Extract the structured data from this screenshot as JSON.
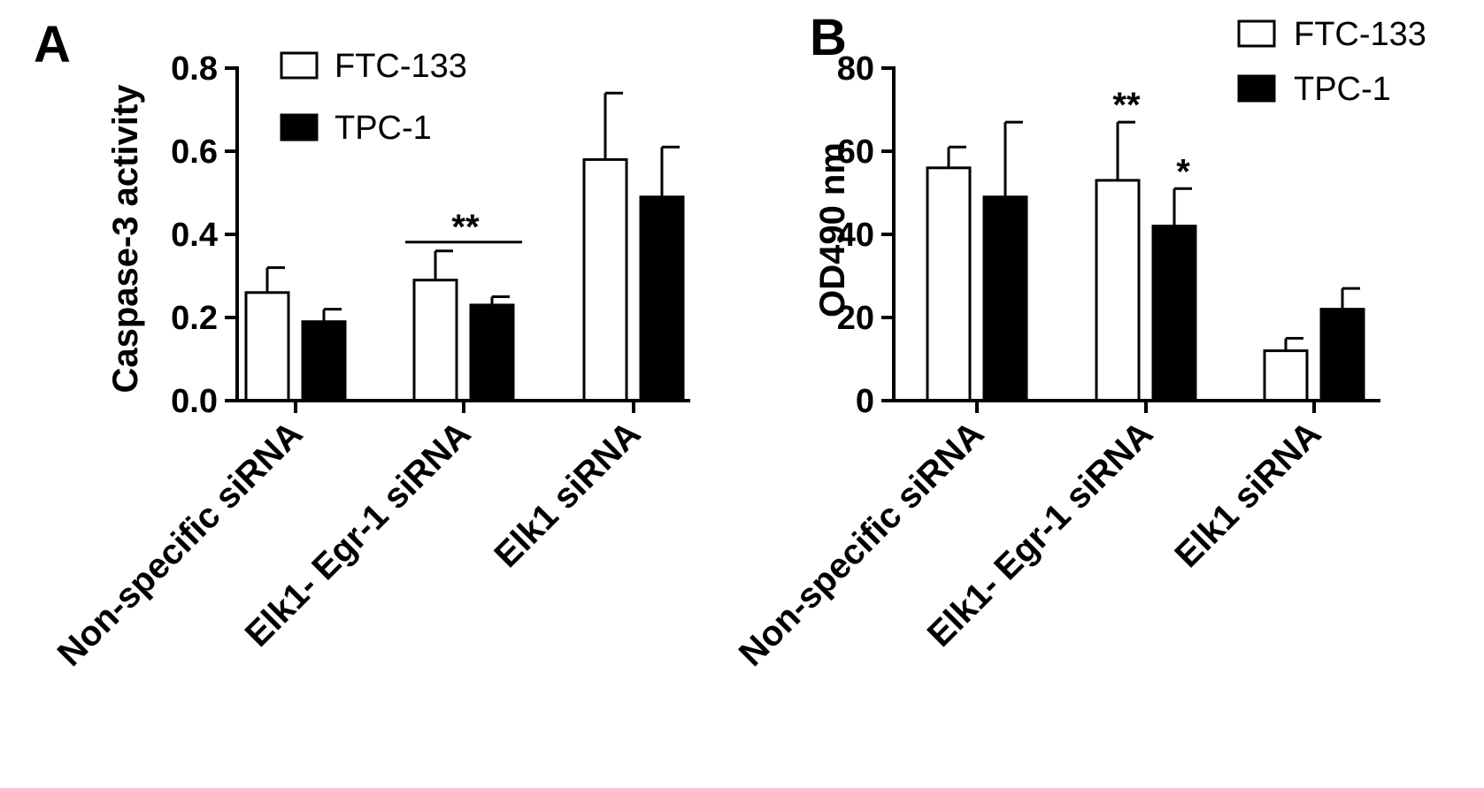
{
  "chart_data": [
    {
      "panel": "A",
      "type": "bar",
      "ylabel": "Caspase-3 activity",
      "ylim": [
        0,
        0.8
      ],
      "yticks": [
        "0.0",
        "0.2",
        "0.4",
        "0.6",
        "0.8"
      ],
      "categories": [
        "Non-specific siRNA",
        "Elk1- Egr-1 siRNA",
        "Elk1 siRNA"
      ],
      "series": [
        {
          "name": "FTC-133",
          "fill": "#ffffff",
          "values": [
            0.26,
            0.29,
            0.58
          ],
          "errors": [
            0.06,
            0.07,
            0.16
          ]
        },
        {
          "name": "TPC-1",
          "fill": "#000000",
          "values": [
            0.19,
            0.23,
            0.49
          ],
          "errors": [
            0.03,
            0.02,
            0.12
          ]
        }
      ],
      "annotations": [
        {
          "text": "**",
          "category": 1,
          "kind": "bracket"
        }
      ],
      "legend": "top-center"
    },
    {
      "panel": "B",
      "type": "bar",
      "ylabel": "OD490 nm",
      "ylim": [
        0,
        80
      ],
      "yticks": [
        "0",
        "20",
        "40",
        "60",
        "80"
      ],
      "categories": [
        "Non-specific siRNA",
        "Elk1- Egr-1 siRNA",
        "Elk1 siRNA"
      ],
      "series": [
        {
          "name": "FTC-133",
          "fill": "#ffffff",
          "values": [
            56,
            53,
            12
          ],
          "errors": [
            5,
            14,
            3
          ]
        },
        {
          "name": "TPC-1",
          "fill": "#000000",
          "values": [
            49,
            42,
            22
          ],
          "errors": [
            18,
            9,
            5
          ]
        }
      ],
      "annotations": [
        {
          "text": "**",
          "category": 1,
          "series": 0
        },
        {
          "text": "*",
          "category": 1,
          "series": 1
        }
      ],
      "legend": "top-right"
    }
  ]
}
